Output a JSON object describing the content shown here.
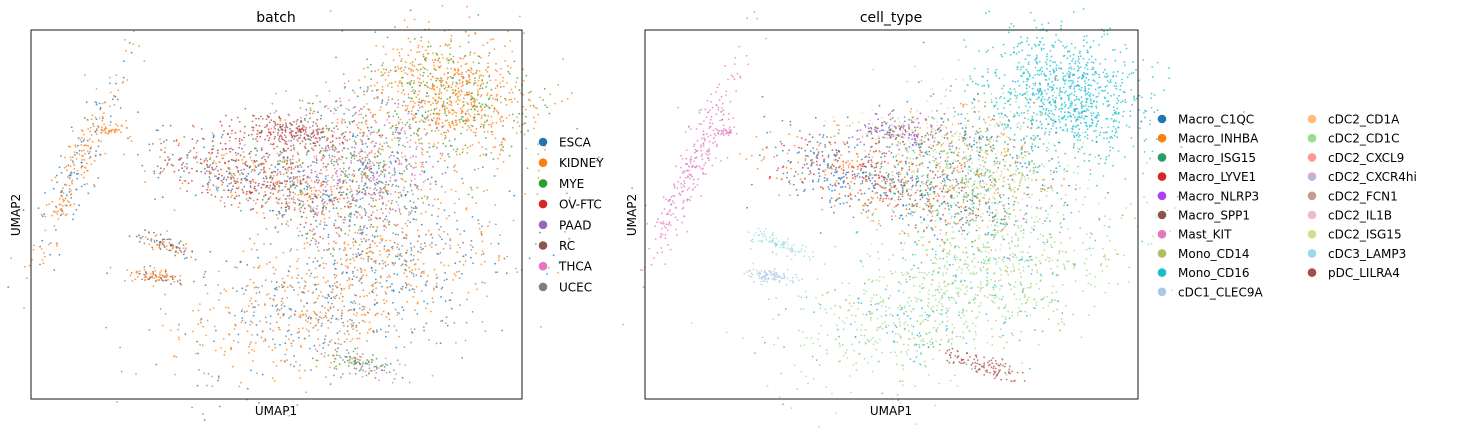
{
  "chart_data": [
    {
      "type": "scatter",
      "title": "batch",
      "xlabel": "UMAP1",
      "ylabel": "UMAP2",
      "grid": false,
      "legend_position": "right",
      "legend": [
        {
          "label": "ESCA",
          "color": "#1f77b4"
        },
        {
          "label": "KIDNEY",
          "color": "#ff7f0e"
        },
        {
          "label": "MYE",
          "color": "#2ca02c"
        },
        {
          "label": "OV-FTC",
          "color": "#d62728"
        },
        {
          "label": "PAAD",
          "color": "#9467bd"
        },
        {
          "label": "RC",
          "color": "#8c564b"
        },
        {
          "label": "THCA",
          "color": "#e377c2"
        },
        {
          "label": "UCEC",
          "color": "#7f7f7f"
        }
      ]
    },
    {
      "type": "scatter",
      "title": "cell_type",
      "xlabel": "UMAP1",
      "ylabel": "UMAP2",
      "grid": false,
      "legend_position": "right",
      "legend": [
        {
          "label": "Macro_C1QC",
          "color": "#1f77b4"
        },
        {
          "label": "Macro_INHBA",
          "color": "#ff7f0e"
        },
        {
          "label": "Macro_ISG15",
          "color": "#279e68"
        },
        {
          "label": "Macro_LYVE1",
          "color": "#d62728"
        },
        {
          "label": "Macro_NLRP3",
          "color": "#aa40fc"
        },
        {
          "label": "Macro_SPP1",
          "color": "#8c564b"
        },
        {
          "label": "Mast_KIT",
          "color": "#e377c2"
        },
        {
          "label": "Mono_CD14",
          "color": "#b5bd61"
        },
        {
          "label": "Mono_CD16",
          "color": "#17becf"
        },
        {
          "label": "cDC1_CLEC9A",
          "color": "#aec7e8"
        },
        {
          "label": "cDC2_CD1A",
          "color": "#ffbb78"
        },
        {
          "label": "cDC2_CD1C",
          "color": "#98df8a"
        },
        {
          "label": "cDC2_CXCL9",
          "color": "#ff9896"
        },
        {
          "label": "cDC2_CXCR4hi",
          "color": "#c5b0d5"
        },
        {
          "label": "cDC2_FCN1",
          "color": "#c49c94"
        },
        {
          "label": "cDC2_IL1B",
          "color": "#f7b6d2"
        },
        {
          "label": "cDC2_ISG15",
          "color": "#dbdb8d"
        },
        {
          "label": "cDC3_LAMP3",
          "color": "#9edae5"
        },
        {
          "label": "pDC_LILRA4",
          "color": "#ad494a"
        }
      ]
    }
  ]
}
